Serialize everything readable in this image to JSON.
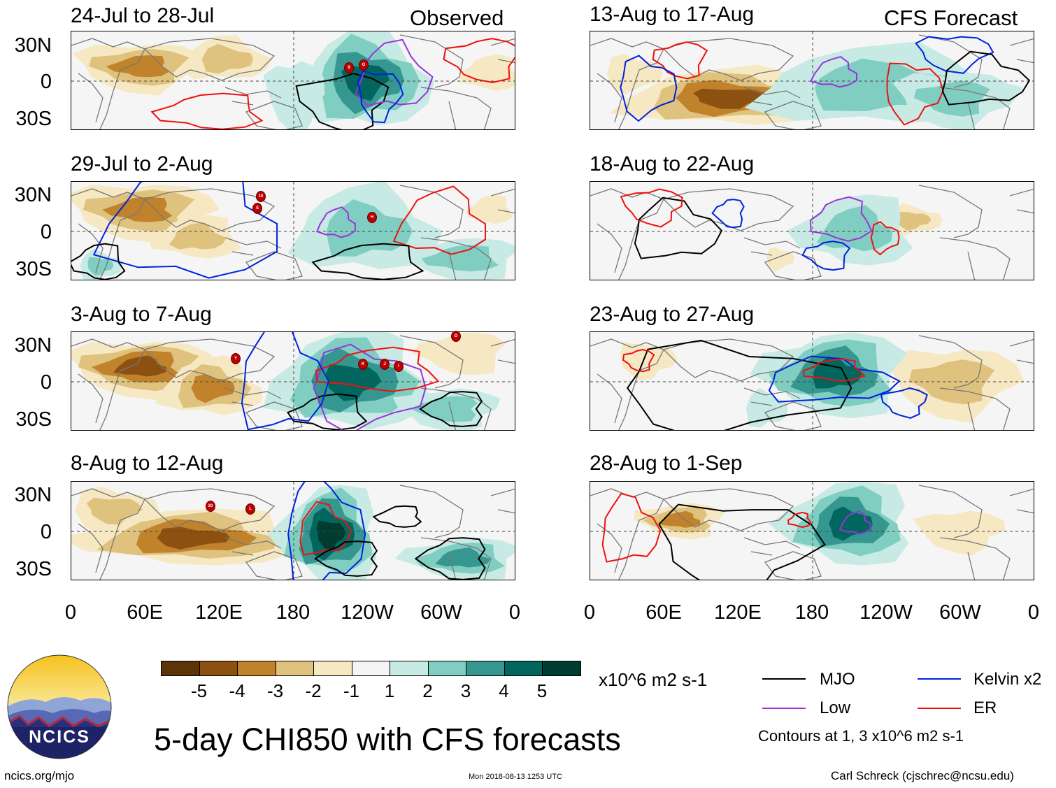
{
  "observed_label": "Observed",
  "forecast_label": "CFS Forecast",
  "main_title": "5-day CHI850 with CFS forecasts",
  "units": "x10^6 m2 s-1",
  "footer": {
    "left": "ncics.org/mjo",
    "center": "Mon 2018-08-13 1253 UTC",
    "right": "Carl Schreck (cjschrec@ncsu.edu)"
  },
  "logo_text": "NCICS",
  "lat_labels": [
    "30N",
    "0",
    "30S"
  ],
  "lon_labels": [
    "0",
    "60E",
    "120E",
    "180",
    "120W",
    "60W",
    "0"
  ],
  "left_panels": [
    {
      "title": "24-Jul to 28-Jul"
    },
    {
      "title": "29-Jul to 2-Aug"
    },
    {
      "title": "3-Aug to 7-Aug"
    },
    {
      "title": "8-Aug to 12-Aug"
    }
  ],
  "right_panels": [
    {
      "title": "13-Aug to 17-Aug"
    },
    {
      "title": "18-Aug to 22-Aug"
    },
    {
      "title": "23-Aug to 27-Aug"
    },
    {
      "title": "28-Aug to 1-Sep"
    }
  ],
  "colorbar": {
    "labels": [
      "-5",
      "-4",
      "-3",
      "-2",
      "-1",
      "1",
      "2",
      "3",
      "4",
      "5"
    ],
    "colors": [
      "#5c3408",
      "#8c5011",
      "#c1822c",
      "#dfc27d",
      "#f6e8c3",
      "#f5f5f5",
      "#c7eae5",
      "#80cdc1",
      "#35978f",
      "#01665e",
      "#003c30"
    ]
  },
  "legend": {
    "items": [
      {
        "label": "MJO",
        "color": "#000000"
      },
      {
        "label": "Kelvin x2",
        "color": "#0022dd"
      },
      {
        "label": "Low",
        "color": "#9933dd"
      },
      {
        "label": "ER",
        "color": "#ee1111"
      }
    ],
    "note": "Contours at 1, 3 x10^6 m2 s-1"
  },
  "cyclones": [
    {
      "label": "9"
    },
    {
      "label": "G"
    },
    {
      "label": "10"
    },
    {
      "label": "S"
    },
    {
      "label": "H"
    },
    {
      "label": "Y"
    },
    {
      "label": "K"
    },
    {
      "label": "J"
    },
    {
      "label": "I"
    },
    {
      "label": "D"
    },
    {
      "label": "20"
    },
    {
      "label": "L"
    }
  ]
}
